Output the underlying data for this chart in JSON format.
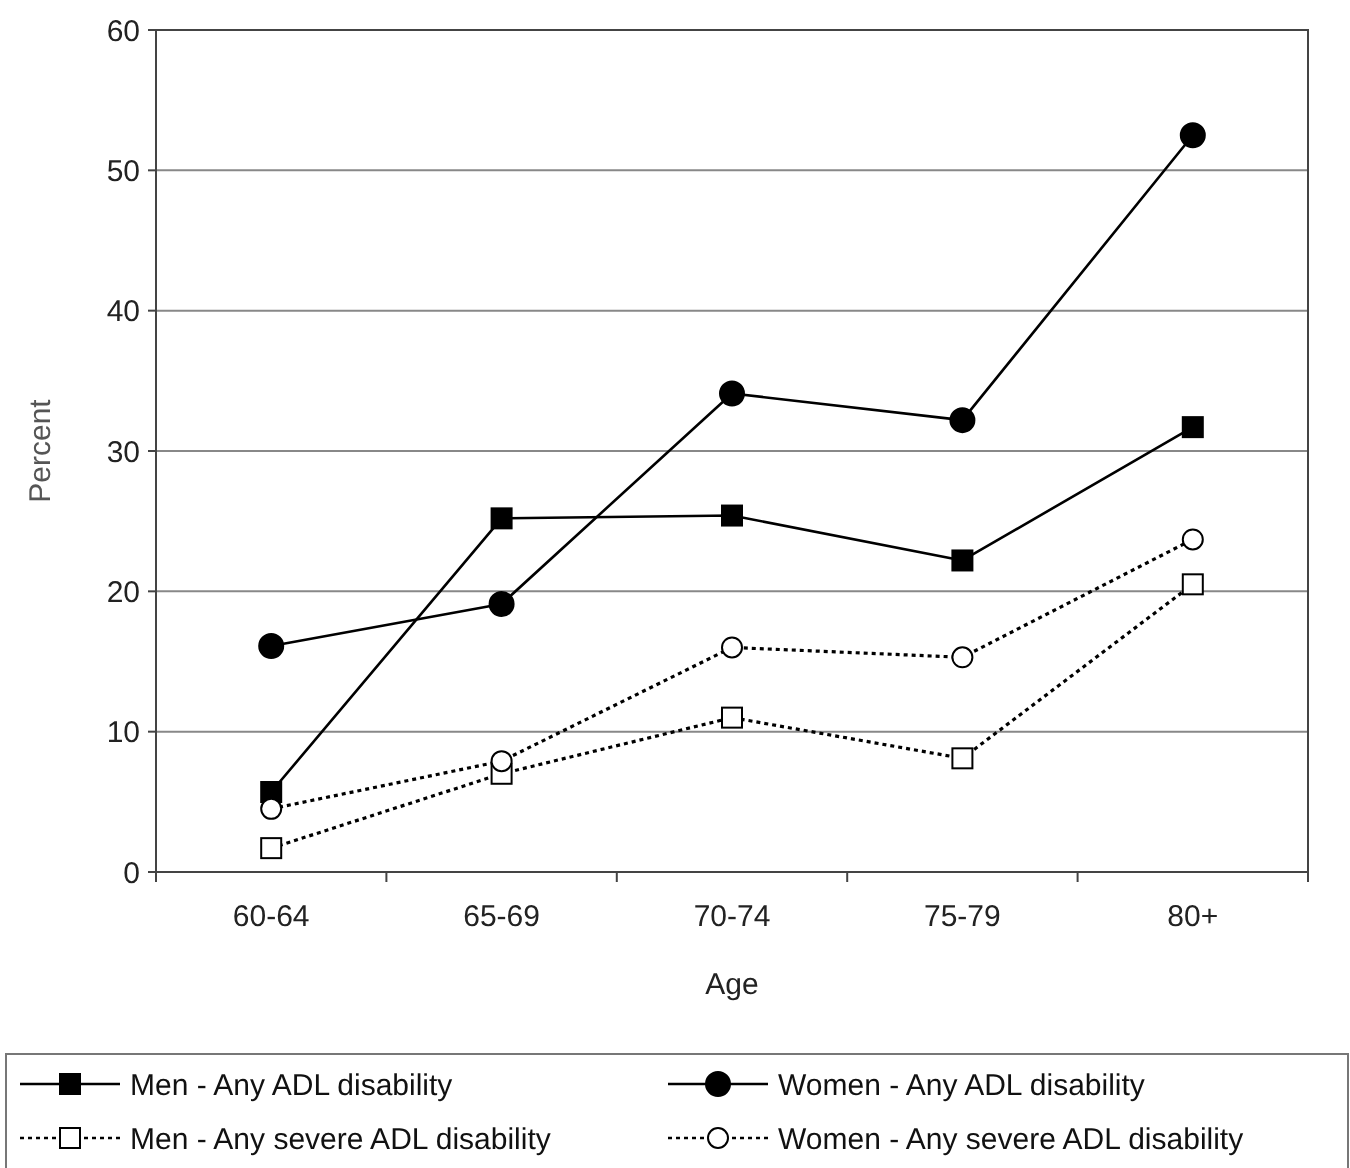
{
  "chart_data": {
    "type": "line",
    "xlabel": "Age",
    "ylabel": "Percent",
    "categories": [
      "60-64",
      "65-69",
      "70-74",
      "75-79",
      "80+"
    ],
    "ylim": [
      0,
      60
    ],
    "yticks": [
      0,
      10,
      20,
      30,
      40,
      50,
      60
    ],
    "grid": "y",
    "legend": "bottom",
    "series": [
      {
        "name": "Men - Any ADL disability",
        "color": "#000000",
        "marker": "square",
        "line_style": "solid",
        "values": [
          5.7,
          25.2,
          25.4,
          22.2,
          31.7
        ]
      },
      {
        "name": "Men - Any severe ADL disability",
        "color": "#000000",
        "marker": "square-open",
        "line_style": "dotted",
        "values": [
          1.7,
          7.0,
          11.0,
          8.1,
          20.5
        ]
      },
      {
        "name": "Women - Any ADL disability",
        "color": "#000000",
        "marker": "circle",
        "line_style": "solid",
        "values": [
          16.1,
          19.1,
          34.1,
          32.2,
          52.5
        ]
      },
      {
        "name": "Women - Any severe ADL disability",
        "color": "#000000",
        "marker": "circle-open",
        "line_style": "dotted",
        "values": [
          4.5,
          7.9,
          16.0,
          15.3,
          23.7
        ]
      }
    ]
  }
}
